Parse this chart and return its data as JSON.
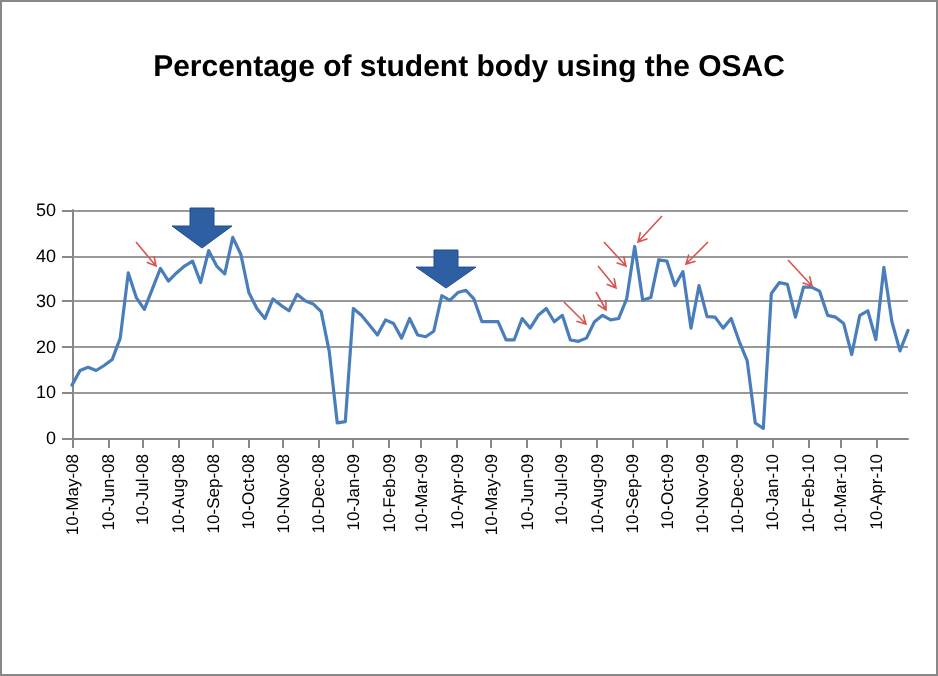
{
  "chart_data": {
    "type": "line",
    "title": "Percentage of student body using the OSAC",
    "x": [
      "2008-05-10",
      "2008-05-17",
      "2008-05-24",
      "2008-05-31",
      "2008-06-07",
      "2008-06-14",
      "2008-06-21",
      "2008-06-28",
      "2008-07-05",
      "2008-07-12",
      "2008-07-19",
      "2008-07-26",
      "2008-08-02",
      "2008-08-09",
      "2008-08-16",
      "2008-08-23",
      "2008-08-30",
      "2008-09-06",
      "2008-09-13",
      "2008-09-20",
      "2008-09-27",
      "2008-10-04",
      "2008-10-11",
      "2008-10-18",
      "2008-10-25",
      "2008-11-01",
      "2008-11-08",
      "2008-11-15",
      "2008-11-22",
      "2008-11-29",
      "2008-12-06",
      "2008-12-13",
      "2008-12-20",
      "2008-12-27",
      "2009-01-03",
      "2009-01-10",
      "2009-01-17",
      "2009-01-24",
      "2009-01-31",
      "2009-02-07",
      "2009-02-14",
      "2009-02-21",
      "2009-02-28",
      "2009-03-07",
      "2009-03-14",
      "2009-03-21",
      "2009-03-28",
      "2009-04-04",
      "2009-04-11",
      "2009-04-18",
      "2009-04-25",
      "2009-05-02",
      "2009-05-09",
      "2009-05-16",
      "2009-05-23",
      "2009-05-30",
      "2009-06-06",
      "2009-06-13",
      "2009-06-20",
      "2009-06-27",
      "2009-07-04",
      "2009-07-11",
      "2009-07-18",
      "2009-07-25",
      "2009-08-01",
      "2009-08-08",
      "2009-08-15",
      "2009-08-22",
      "2009-08-29",
      "2009-09-05",
      "2009-09-12",
      "2009-09-19",
      "2009-09-26",
      "2009-10-03",
      "2009-10-10",
      "2009-10-17",
      "2009-10-24",
      "2009-10-31",
      "2009-11-07",
      "2009-11-14",
      "2009-11-21",
      "2009-11-28",
      "2009-12-05",
      "2009-12-12",
      "2009-12-19",
      "2009-12-26",
      "2010-01-02",
      "2010-01-09",
      "2010-01-16",
      "2010-01-23",
      "2010-01-30",
      "2010-02-06",
      "2010-02-13",
      "2010-02-20",
      "2010-02-27",
      "2010-03-06",
      "2010-03-13",
      "2010-03-20",
      "2010-03-27",
      "2010-04-03",
      "2010-04-10",
      "2010-04-17",
      "2010-04-24",
      "2010-05-01",
      "2010-05-08"
    ],
    "series": [
      {
        "color": "#4a7ebb",
        "values": [
          11.6,
          14.8,
          15.5,
          14.8,
          15.9,
          17.2,
          21.9,
          36.2,
          30.8,
          28.2,
          32.7,
          37.2,
          34.4,
          36.2,
          37.7,
          38.8,
          34.1,
          41.1,
          37.7,
          36.0,
          44.0,
          40.3,
          31.9,
          28.4,
          26.2,
          30.5,
          29.1,
          27.9,
          31.5,
          30.1,
          29.4,
          27.7,
          19.0,
          3.3,
          3.6,
          28.4,
          26.9,
          24.8,
          22.6,
          25.9,
          25.1,
          21.9,
          26.2,
          22.6,
          22.2,
          23.4,
          31.2,
          30.2,
          31.9,
          32.4,
          30.5,
          25.5,
          25.5,
          25.5,
          21.5,
          21.5,
          26.2,
          24.1,
          26.9,
          28.4,
          25.5,
          26.9,
          21.5,
          21.2,
          21.9,
          25.5,
          26.9,
          25.9,
          26.2,
          30.5,
          42.0,
          30.2,
          30.8,
          39.1,
          38.8,
          33.4,
          36.5,
          24.1,
          33.4,
          26.6,
          26.5,
          24.1,
          26.2,
          21.2,
          16.9,
          3.3,
          2.1,
          31.7,
          34.1,
          33.7,
          26.5,
          33.1,
          33.1,
          32.2,
          26.9,
          26.5,
          25.1,
          18.3,
          26.9,
          27.9,
          21.6,
          37.4,
          25.5,
          19.1,
          23.6
        ]
      }
    ],
    "xlim": [
      "2008-05-10",
      "2010-05-08"
    ],
    "xticks": [
      {
        "value": "2008-05-10",
        "label": "10-May-08"
      },
      {
        "value": "2008-06-10",
        "label": "10-Jun-08"
      },
      {
        "value": "2008-07-10",
        "label": "10-Jul-08"
      },
      {
        "value": "2008-08-10",
        "label": "10-Aug-08"
      },
      {
        "value": "2008-09-10",
        "label": "10-Sep-08"
      },
      {
        "value": "2008-10-10",
        "label": "10-Oct-08"
      },
      {
        "value": "2008-11-10",
        "label": "10-Nov-08"
      },
      {
        "value": "2008-12-10",
        "label": "10-Dec-08"
      },
      {
        "value": "2009-01-10",
        "label": "10-Jan-09"
      },
      {
        "value": "2009-02-10",
        "label": "10-Feb-09"
      },
      {
        "value": "2009-03-10",
        "label": "10-Mar-09"
      },
      {
        "value": "2009-04-10",
        "label": "10-Apr-09"
      },
      {
        "value": "2009-05-10",
        "label": "10-May-09"
      },
      {
        "value": "2009-06-10",
        "label": "10-Jun-09"
      },
      {
        "value": "2009-07-10",
        "label": "10-Jul-09"
      },
      {
        "value": "2009-08-10",
        "label": "10-Aug-09"
      },
      {
        "value": "2009-09-10",
        "label": "10-Sep-09"
      },
      {
        "value": "2009-10-10",
        "label": "10-Oct-09"
      },
      {
        "value": "2009-11-10",
        "label": "10-Nov-09"
      },
      {
        "value": "2009-12-10",
        "label": "10-Dec-09"
      },
      {
        "value": "2010-01-10",
        "label": "10-Jan-10"
      },
      {
        "value": "2010-02-10",
        "label": "10-Feb-10"
      },
      {
        "value": "2010-03-10",
        "label": "10-Mar-10"
      },
      {
        "value": "2010-04-10",
        "label": "10-Apr-10"
      }
    ],
    "ylim": [
      0,
      50
    ],
    "yticks": [
      0,
      10,
      20,
      30,
      40,
      50
    ],
    "grid": "y",
    "marker": "none",
    "line_style": "solid"
  }
}
